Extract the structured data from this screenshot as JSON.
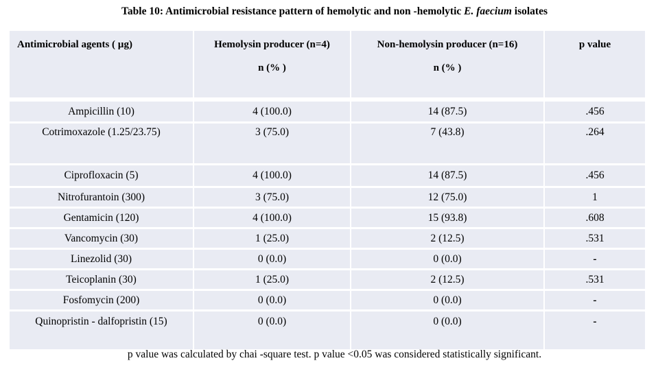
{
  "title": {
    "prefix": "Table 10: Antimicrobial resistance pattern of hemolytic and non -hemolytic ",
    "italic": "E. faecium",
    "suffix": " isolates"
  },
  "table": {
    "headers": {
      "col1": "Antimicrobial agents ( µg)",
      "col2_line1": "Hemolysin producer (n=4)",
      "col2_line2": "n (% )",
      "col3_line1": "Non-hemolysin producer (n=16)",
      "col3_line2": "n (% )",
      "col4": "p value"
    },
    "rows": [
      {
        "agent": "Ampicillin (10)",
        "hemolysin": "4 (100.0)",
        "non_hemolysin": "14 (87.5)",
        "p_value": ".456"
      },
      {
        "agent": "Cotrimoxazole (1.25/23.75)",
        "hemolysin": "3 (75.0)",
        "non_hemolysin": "7 (43.8)",
        "p_value": ".264"
      },
      {
        "agent": "Ciprofloxacin (5)",
        "hemolysin": "4 (100.0)",
        "non_hemolysin": "14 (87.5)",
        "p_value": ".456"
      },
      {
        "agent": "Nitrofurantoin (300)",
        "hemolysin": "3 (75.0)",
        "non_hemolysin": "12 (75.0)",
        "p_value": "1"
      },
      {
        "agent": "Gentamicin (120)",
        "hemolysin": "4 (100.0)",
        "non_hemolysin": "15 (93.8)",
        "p_value": ".608"
      },
      {
        "agent": "Vancomycin (30)",
        "hemolysin": "1 (25.0)",
        "non_hemolysin": "2 (12.5)",
        "p_value": ".531"
      },
      {
        "agent": "Linezolid (30)",
        "hemolysin": "0 (0.0)",
        "non_hemolysin": "0 (0.0)",
        "p_value": "-"
      },
      {
        "agent": "Teicoplanin (30)",
        "hemolysin": "1 (25.0)",
        "non_hemolysin": "2 (12.5)",
        "p_value": ".531"
      },
      {
        "agent": "Fosfomycin (200)",
        "hemolysin": "0 (0.0)",
        "non_hemolysin": "0 (0.0)",
        "p_value": "-"
      },
      {
        "agent": "Quinopristin - dalfopristin  (15)",
        "hemolysin": "0 (0.0)",
        "non_hemolysin": "0 (0.0)",
        "p_value": "-"
      }
    ]
  },
  "footnote": "p value was calculated by chai -square test. p value <0.05 was considered statistically significant.",
  "colors": {
    "cell_background": "#e9ebf3",
    "grid_lines": "#ffffff",
    "text": "#000000"
  }
}
